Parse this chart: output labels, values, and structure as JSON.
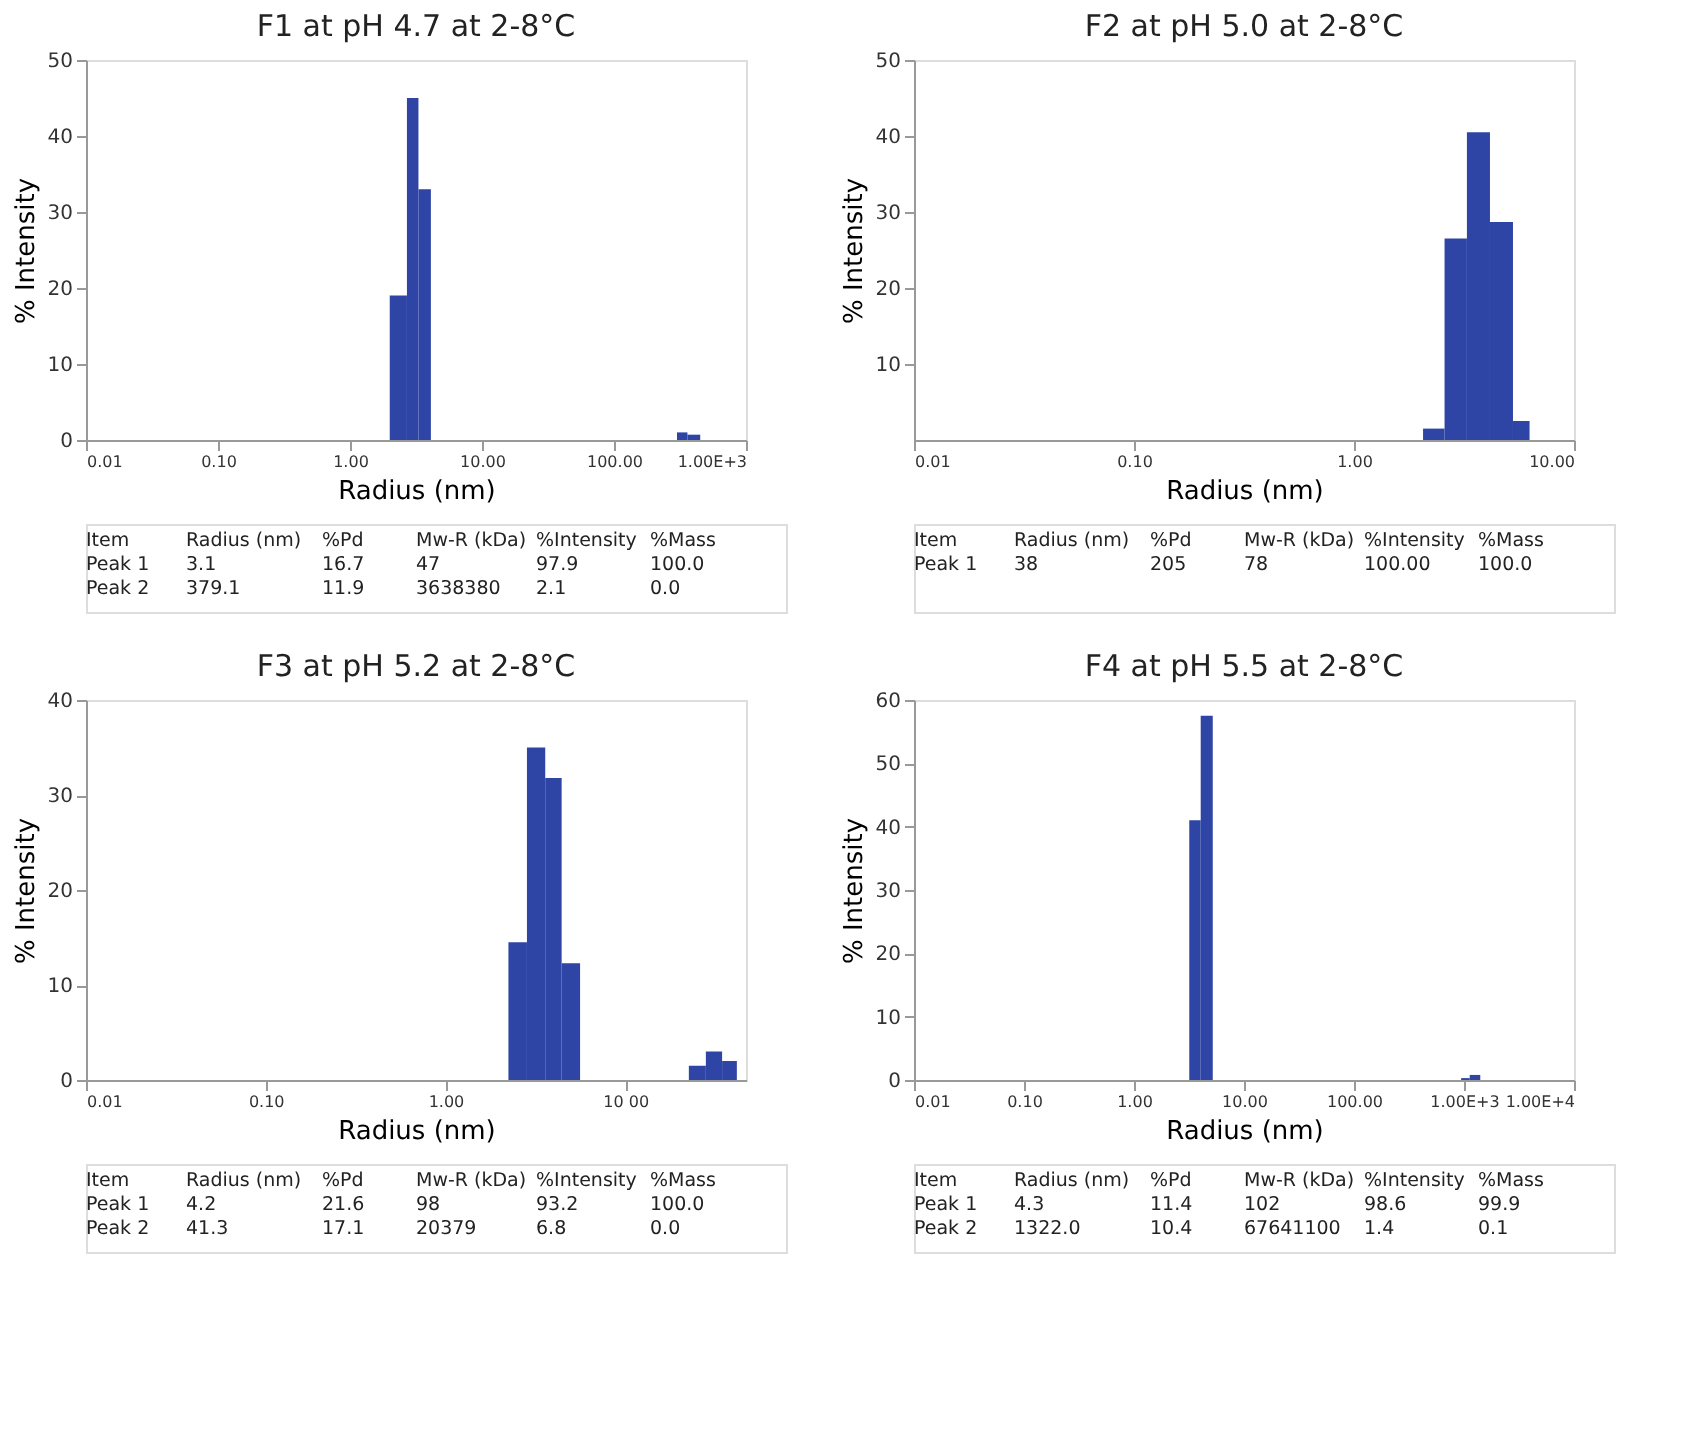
{
  "chart_data": [
    {
      "type": "histogram",
      "title": "F1 at pH 4.7 at 2-8°C",
      "xlabel": "Radius (nm)",
      "ylabel": "% Intensity",
      "color": "#2e45a6",
      "log": "x",
      "grid": false,
      "bins": [
        2.0,
        2.7,
        3.3,
        4.1,
        300,
        360,
        450
      ],
      "values": [
        19,
        45,
        33,
        0,
        1,
        0.7
      ],
      "xlim": [
        0.01,
        1000
      ],
      "xticks": [
        {
          "value": 0.01,
          "label": "0.01"
        },
        {
          "value": 0.1,
          "label": "0.10"
        },
        {
          "value": 1,
          "label": "1.00"
        },
        {
          "value": 10,
          "label": "10.00"
        },
        {
          "value": 100,
          "label": "100.00"
        },
        {
          "value": 1000,
          "label": "1.00E+3"
        }
      ],
      "ylim": [
        0,
        50
      ],
      "yticks": [
        0,
        10,
        20,
        30,
        40,
        50
      ],
      "annotations": [
        "Item  Radius (nm)  %Pd  Mw-R (kDa)  %Intensity  %Mass",
        "Peak 1  3.1  16.7  47  97.9  100.0",
        "Peak 2  379.1  11.9  3638380  2.1  0.0"
      ]
    },
    {
      "type": "histogram",
      "title": "F2 at pH 5.0 at 2-8°C",
      "xlabel": "Radius (nm)",
      "ylabel": "% Intensity",
      "color": "#2e45a6",
      "log": "x",
      "grid": false,
      "bins": [
        2.06,
        2.58,
        3.26,
        4.15,
        5.28,
        6.28
      ],
      "values": [
        1.5,
        26.5,
        40.5,
        28.7,
        2.5
      ],
      "xlim": [
        0.01,
        10
      ],
      "xticks": [
        {
          "value": 0.01,
          "label": "0.01"
        },
        {
          "value": 0.1,
          "label": "0.10"
        },
        {
          "value": 1,
          "label": "1.00"
        },
        {
          "value": 10,
          "label": "10.00"
        }
      ],
      "ylim": [
        0,
        50
      ],
      "yticks": [
        10,
        20,
        30,
        40,
        50
      ],
      "annotations": [
        "Item  Radius (nm)  %Pd  Mw-R (kDa)  %Intensity  %Mass",
        "Peak 1  38  205  78  100.00  100.0"
      ]
    },
    {
      "type": "histogram",
      "title": "F3 at pH 5.2 at 2-8°C",
      "xlabel": "Radius (nm)",
      "ylabel": "% Intensity",
      "color": "#2e45a6",
      "log": "x",
      "grid": false,
      "bins": [
        2.24,
        2.84,
        3.59,
        4.43,
        5.61,
        22.6,
        28.1,
        34.6,
        41.8
      ],
      "values": [
        14.5,
        35,
        31.8,
        12.3,
        0,
        1.5,
        3,
        2
      ],
      "xlim": [
        0.01,
        47
      ],
      "xticks": [
        {
          "value": 0.01,
          "label": "0.01"
        },
        {
          "value": 0.1,
          "label": "0.10"
        },
        {
          "value": 1,
          "label": "1.00"
        },
        {
          "value": 10,
          "label": "10 00"
        }
      ],
      "ylim": [
        0,
        40
      ],
      "yticks": [
        0,
        10,
        20,
        30,
        40
      ],
      "annotations": [
        "Item  Radius (nm)  %Pd  Mw-R (kDa)  %Intensity  %Mass",
        "Peak 1  4.2  21.6  98  93.2  100.0",
        "Peak 2  41.3  17.1  20379  6.8  0.0"
      ]
    },
    {
      "type": "histogram",
      "title": "F4 at pH 5.5 at 2-8°C",
      "xlabel": "Radius (nm)",
      "ylabel": "% Intensity",
      "color": "#2e45a6",
      "log": "x",
      "grid": false,
      "bins": [
        3.18,
        4.04,
        5.2,
        942,
        1127,
        1406
      ],
      "values": [
        41,
        57.5,
        0,
        0.3,
        0.8
      ],
      "xlim": [
        0.01,
        10000
      ],
      "xticks": [
        {
          "value": 0.01,
          "label": "0.01"
        },
        {
          "value": 0.1,
          "label": "0.10"
        },
        {
          "value": 1,
          "label": "1.00"
        },
        {
          "value": 10,
          "label": "10.00"
        },
        {
          "value": 100,
          "label": "100.00"
        },
        {
          "value": 1000,
          "label": "1.00E+3"
        },
        {
          "value": 10000,
          "label": "1.00E+4"
        }
      ],
      "ylim": [
        0,
        60
      ],
      "yticks": [
        0,
        10,
        20,
        30,
        40,
        50,
        60
      ],
      "annotations": [
        "Item  Radius (nm)  %Pd  Mw-R (kDa)  %Intensity  %Mass",
        "Peak 1  4.3  11.4  102  98.6  99.9",
        "Peak 2  1322.0  10.4  67641100  1.4  0.1"
      ]
    }
  ]
}
